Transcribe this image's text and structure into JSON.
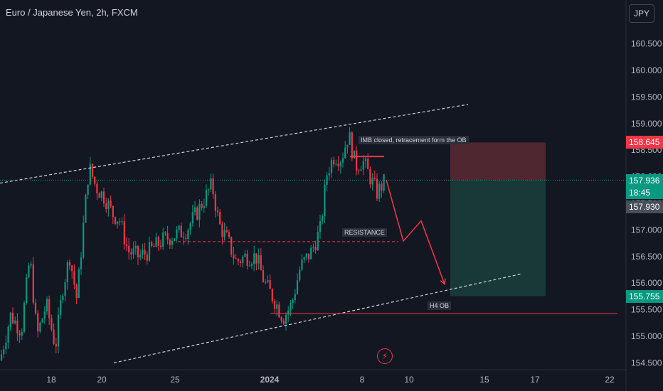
{
  "header": {
    "title": "Euro / Japanese Yen, 2h, FXCM",
    "currency_button": "JPY"
  },
  "annotations": {
    "imb_note": "IMB closed, retracement form the OB",
    "resistance": "RESISTANCE",
    "h4_ob": "H4 OB"
  },
  "price_tags": {
    "stop": "158.645",
    "last": "157.936",
    "countdown": "18:45",
    "bid": "157.930",
    "target": "155.755"
  },
  "colors": {
    "background": "#131722",
    "up": "#089981",
    "down": "#f23645",
    "stop_zone": "#5b2a33",
    "target_zone": "#1a3d3b",
    "last_price": "#089981",
    "stop_tag": "#f23645",
    "bid_tag": "#4a4e5a"
  },
  "icons": {
    "alert": "lightning-icon"
  },
  "chart_data": {
    "type": "candlestick",
    "title": "Euro / Japanese Yen, 2h, FXCM",
    "ylim": [
      154.45,
      161.25
    ],
    "y_ticks": [
      154.5,
      155.0,
      155.5,
      156.0,
      156.5,
      157.0,
      157.5,
      158.0,
      158.5,
      159.0,
      159.5,
      160.0,
      160.5
    ],
    "x_ticks": [
      "18",
      "20",
      "25",
      "2024",
      "8",
      "10",
      "15",
      "17",
      "22"
    ],
    "grid": false,
    "price_path": [
      [
        0,
        154.55
      ],
      [
        15,
        155.4
      ],
      [
        30,
        155.1
      ],
      [
        42,
        156.5
      ],
      [
        52,
        155.0
      ],
      [
        65,
        155.6
      ],
      [
        78,
        154.8
      ],
      [
        88,
        155.9
      ],
      [
        98,
        156.5
      ],
      [
        108,
        155.7
      ],
      [
        118,
        157.2
      ],
      [
        125,
        158.2
      ],
      [
        135,
        157.8
      ],
      [
        148,
        157.6
      ],
      [
        158,
        157.3
      ],
      [
        168,
        157.2
      ],
      [
        180,
        156.6
      ],
      [
        195,
        156.5
      ],
      [
        210,
        156.6
      ],
      [
        228,
        156.8
      ],
      [
        245,
        156.9
      ],
      [
        262,
        157.0
      ],
      [
        280,
        157.4
      ],
      [
        298,
        157.85
      ],
      [
        308,
        157.1
      ],
      [
        320,
        156.8
      ],
      [
        332,
        156.4
      ],
      [
        345,
        156.5
      ],
      [
        360,
        156.5
      ],
      [
        372,
        156.0
      ],
      [
        385,
        155.7
      ],
      [
        398,
        155.35
      ],
      [
        410,
        155.6
      ],
      [
        422,
        156.3
      ],
      [
        438,
        156.6
      ],
      [
        450,
        157.0
      ],
      [
        460,
        158.1
      ],
      [
        470,
        158.4
      ],
      [
        480,
        158.35
      ],
      [
        490,
        158.8
      ],
      [
        500,
        158.2
      ],
      [
        510,
        158.3
      ],
      [
        520,
        158.0
      ],
      [
        530,
        157.7
      ],
      [
        540,
        157.9
      ]
    ],
    "drawings": {
      "upper_channel": {
        "from": [
          0,
          157.88
        ],
        "to": [
          658,
          159.36
        ]
      },
      "lower_channel": {
        "from": [
          160,
          154.5
        ],
        "to": [
          732,
          156.17
        ]
      },
      "resistance_level": {
        "price": 156.78,
        "x_range": [
          250,
          560
        ]
      },
      "h4_ob_level": {
        "price": 155.43,
        "x_range": [
          380,
          868
        ]
      },
      "ob_line": {
        "price": 158.38,
        "x_range": [
          492,
          540
        ]
      },
      "projection_path": [
        [
          543,
          157.94
        ],
        [
          567,
          156.79
        ],
        [
          592,
          157.17
        ],
        [
          625,
          155.98
        ]
      ],
      "short_position": {
        "x_range": [
          633,
          767
        ],
        "entry": 157.936,
        "stop": 158.645,
        "target": 155.755
      }
    }
  }
}
